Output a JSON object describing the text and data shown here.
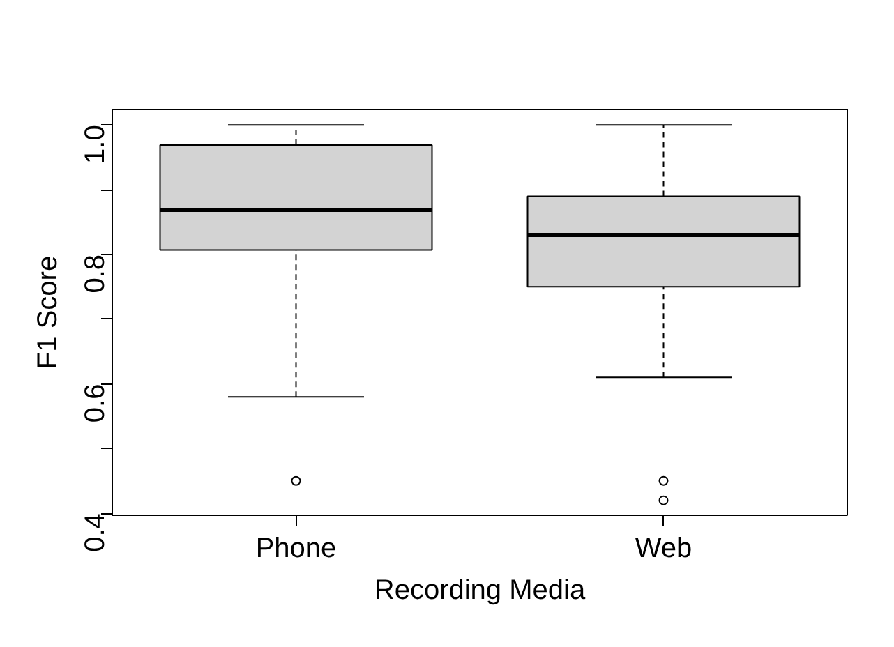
{
  "chart_data": {
    "type": "box",
    "xlabel": "Recording Media",
    "ylabel": "F1 Score",
    "categories": [
      "Phone",
      "Web"
    ],
    "boxes": [
      {
        "low": 0.58,
        "q1": 0.807,
        "median": 0.869,
        "q3": 0.969,
        "high": 1.0,
        "outliers": [
          0.45
        ]
      },
      {
        "low": 0.61,
        "q1": 0.75,
        "median": 0.83,
        "q3": 0.89,
        "high": 1.0,
        "outliers": [
          0.45,
          0.42
        ]
      }
    ],
    "color": "#d3d3d3",
    "ylim": [
      0.397,
      1.024
    ],
    "yticks": [
      0.4,
      {
        "value": 0.5,
        "label": null
      },
      0.6,
      {
        "value": 0.7,
        "label": null
      },
      0.8,
      {
        "value": 0.9,
        "label": null
      },
      {
        "value": 1.0,
        "label": "1.0"
      }
    ],
    "grid": false
  }
}
